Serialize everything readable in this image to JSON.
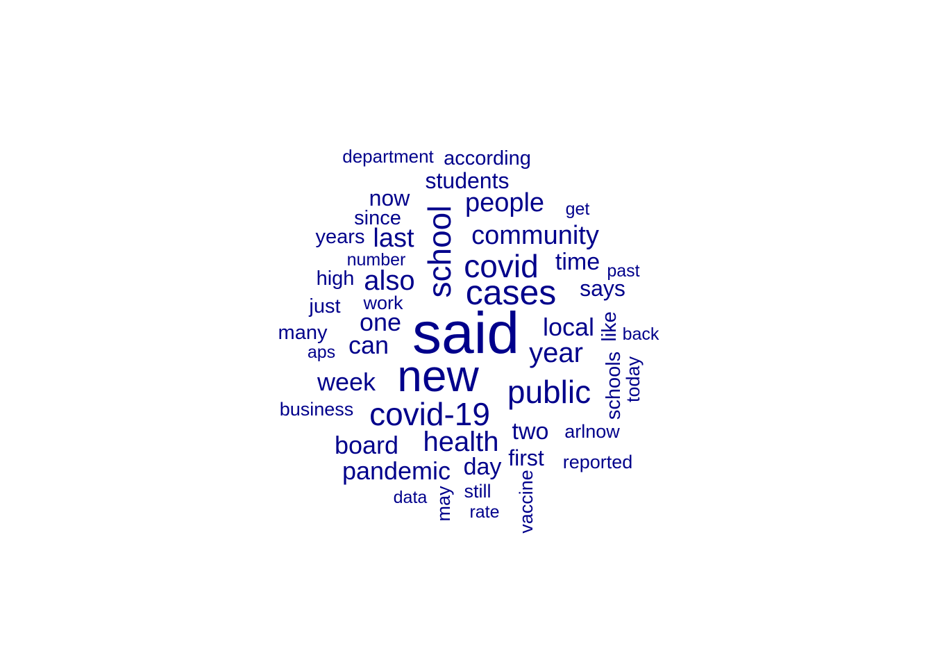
{
  "word_cloud": {
    "color": "#00008B",
    "words": [
      "said",
      "new",
      "cases",
      "covid-19",
      "public",
      "covid",
      "school",
      "health",
      "community",
      "year",
      "people",
      "also",
      "pandemic",
      "local",
      "last",
      "board",
      "one",
      "week",
      "can",
      "two",
      "day",
      "time",
      "says",
      "first",
      "students",
      "now",
      "according",
      "department",
      "schools",
      "like",
      "years",
      "since",
      "high",
      "many",
      "just",
      "work",
      "number",
      "business",
      "today",
      "past",
      "get",
      "back",
      "aps",
      "arlnow",
      "reported",
      "may",
      "still",
      "data",
      "rate",
      "vaccine"
    ]
  }
}
